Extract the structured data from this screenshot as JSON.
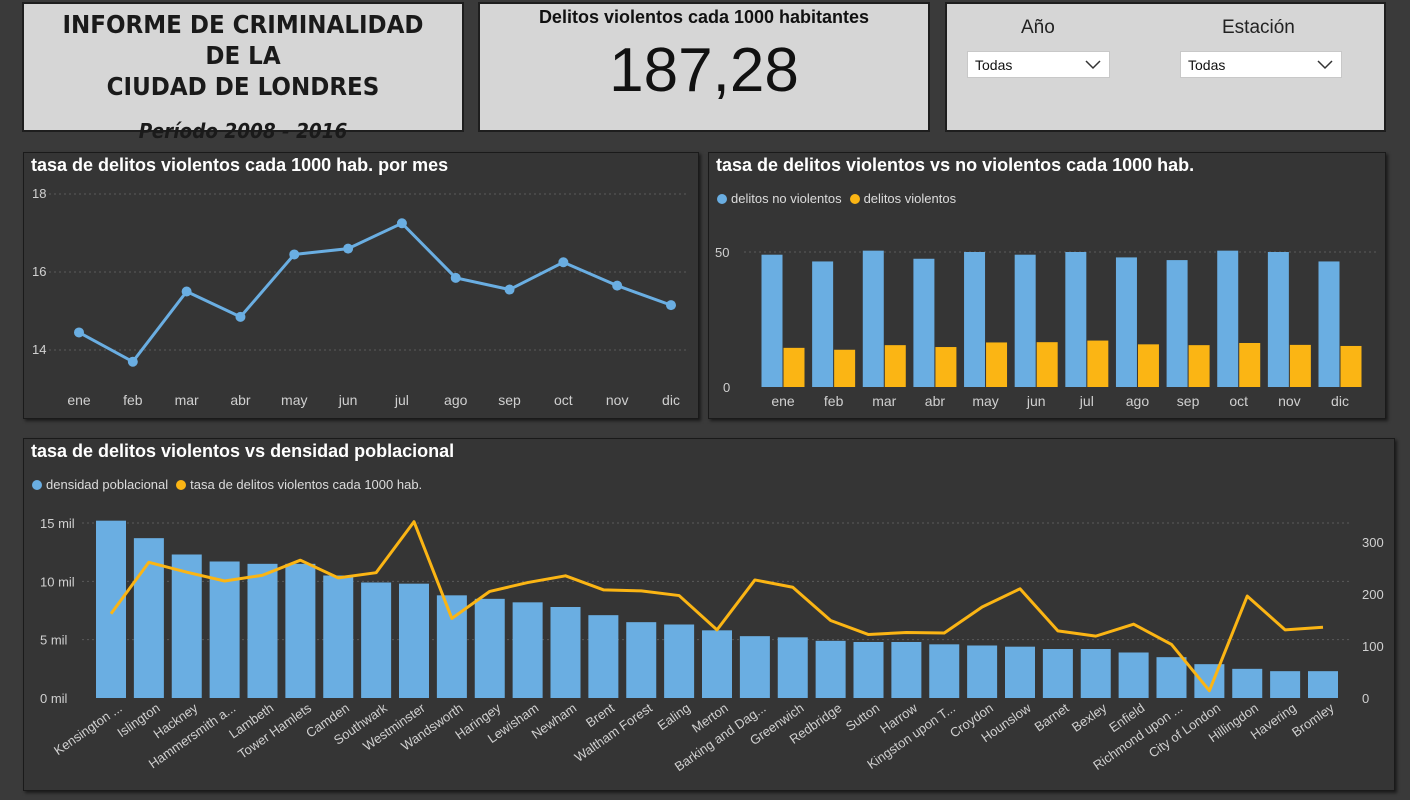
{
  "header": {
    "title_line1": "INFORME DE CRIMINALIDAD DE LA",
    "title_line2": "CIUDAD DE LONDRES",
    "period": "Período 2008 - 2016"
  },
  "kpi": {
    "label": "Delitos violentos cada 1000 habitantes",
    "value": "187,28"
  },
  "filters": {
    "year": {
      "label": "Año",
      "selected": "Todas"
    },
    "season": {
      "label": "Estación",
      "selected": "Todas"
    }
  },
  "colors": {
    "blue": "#6aaee2",
    "yellow": "#fbb514",
    "panel_dark": "#353535",
    "panel_light": "#d6d6d6"
  },
  "chart_data": [
    {
      "type": "line",
      "title": "tasa de delitos violentos cada 1000 hab. por mes",
      "categories": [
        "ene",
        "feb",
        "mar",
        "abr",
        "may",
        "jun",
        "jul",
        "ago",
        "sep",
        "oct",
        "nov",
        "dic"
      ],
      "values": [
        14.45,
        13.7,
        15.5,
        14.85,
        16.45,
        16.6,
        17.25,
        15.85,
        15.55,
        16.25,
        15.65,
        15.15
      ],
      "yticks": [
        14,
        16,
        18
      ],
      "ylim": [
        13.2,
        18.2
      ],
      "grid": true,
      "color": "#6aaee2"
    },
    {
      "type": "bar",
      "title": "tasa de delitos violentos vs no violentos cada 1000 hab.",
      "categories": [
        "ene",
        "feb",
        "mar",
        "abr",
        "may",
        "jun",
        "jul",
        "ago",
        "sep",
        "oct",
        "nov",
        "dic"
      ],
      "series": [
        {
          "name": "delitos no violentos",
          "color": "#6aaee2",
          "values": [
            49,
            46.5,
            50.5,
            47.5,
            50,
            49,
            50,
            48,
            47,
            50.5,
            50,
            46.5
          ]
        },
        {
          "name": "delitos violentos",
          "color": "#fbb514",
          "values": [
            14.5,
            13.8,
            15.5,
            14.8,
            16.5,
            16.6,
            17.2,
            15.8,
            15.5,
            16.3,
            15.6,
            15.2
          ]
        }
      ],
      "yticks": [
        0,
        50
      ],
      "ylim": [
        0,
        50
      ],
      "legend": "top-left",
      "grid": true
    },
    {
      "type": "bar",
      "title": "tasa de delitos violentos vs densidad poblacional",
      "categories": [
        "Kensington ...",
        "Islington",
        "Hackney",
        "Hammersmith a...",
        "Lambeth",
        "Tower Hamlets",
        "Camden",
        "Southwark",
        "Westminster",
        "Wandsworth",
        "Haringey",
        "Lewisham",
        "Newham",
        "Brent",
        "Waltham Forest",
        "Ealing",
        "Merton",
        "Barking and Dag...",
        "Greenwich",
        "Redbridge",
        "Sutton",
        "Harrow",
        "Kingston upon T...",
        "Croydon",
        "Hounslow",
        "Barnet",
        "Bexley",
        "Enfield",
        "Richmond upon ...",
        "City of London",
        "Hillingdon",
        "Havering",
        "Bromley"
      ],
      "series": [
        {
          "name": "densidad poblacional",
          "color": "#6aaee2",
          "axis": "left",
          "kind": "bar",
          "values": [
            15200,
            13700,
            12300,
            11700,
            11500,
            11500,
            10500,
            9900,
            9800,
            8800,
            8500,
            8200,
            7800,
            7100,
            6500,
            6300,
            5800,
            5300,
            5200,
            4900,
            4800,
            4800,
            4600,
            4500,
            4400,
            4200,
            4200,
            3900,
            3500,
            2900,
            2500,
            2300,
            2300
          ]
        },
        {
          "name": "tasa de delitos violentos cada 1000 hab.",
          "color": "#fbb514",
          "axis": "right",
          "kind": "line",
          "values": [
            162,
            261,
            242,
            225,
            236,
            265,
            231,
            241,
            339,
            153,
            205,
            222,
            235,
            208,
            206,
            197,
            131,
            227,
            213,
            149,
            122,
            126,
            125,
            175,
            210,
            129,
            119,
            142,
            103,
            14,
            196,
            131,
            136
          ]
        }
      ],
      "yticks_left_labels": [
        "0 mil",
        "5 mil",
        "10 mil",
        "15 mil"
      ],
      "yticks_left": [
        0,
        5000,
        10000,
        15000
      ],
      "ylim_left": [
        0,
        15500
      ],
      "yticks_right": [
        0,
        100,
        200,
        300
      ],
      "ylim_right": [
        0,
        345
      ],
      "legend": "top-left",
      "grid": true
    }
  ]
}
